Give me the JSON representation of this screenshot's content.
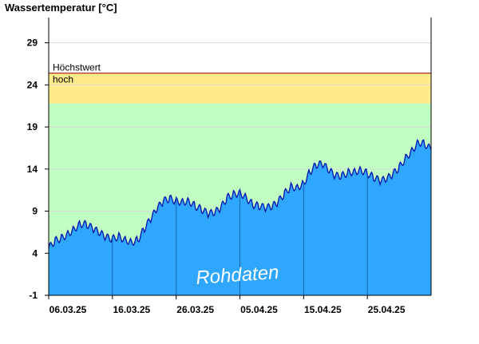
{
  "chart_data": {
    "type": "area",
    "title": "Wassertemperatur [°C]",
    "xlabel": "",
    "ylabel": "Wassertemperatur [°C]",
    "ylim": [
      -1,
      32
    ],
    "yticks": [
      -1,
      4,
      9,
      14,
      19,
      24,
      29
    ],
    "xlim": [
      "2025-03-06",
      "2025-05-05"
    ],
    "xticks": [
      {
        "date": "2025-03-06",
        "label": "06.03.25"
      },
      {
        "date": "2025-03-16",
        "label": "16.03.25"
      },
      {
        "date": "2025-03-26",
        "label": "26.03.25"
      },
      {
        "date": "2025-04-05",
        "label": "05.04.25"
      },
      {
        "date": "2025-04-15",
        "label": "15.04.25"
      },
      {
        "date": "2025-04-25",
        "label": "25.04.25"
      }
    ],
    "grid": true,
    "bands": [
      {
        "label": "",
        "from": -1,
        "to": 21.8,
        "color": "#c1fec1"
      },
      {
        "label": "hoch",
        "from": 21.8,
        "to": 25.4,
        "color": "#ffeb8c"
      }
    ],
    "threshold_lines": [
      {
        "label": "Höchstwert",
        "value": 25.4,
        "color": "#b03020"
      }
    ],
    "watermark": "Rohdaten",
    "series": [
      {
        "fill_color": "#2fa7ff",
        "line_color": "#0010b0",
        "x": [
          "2025-03-06",
          "2025-03-07",
          "2025-03-08",
          "2025-03-09",
          "2025-03-10",
          "2025-03-11",
          "2025-03-12",
          "2025-03-13",
          "2025-03-14",
          "2025-03-15",
          "2025-03-16",
          "2025-03-17",
          "2025-03-18",
          "2025-03-19",
          "2025-03-20",
          "2025-03-21",
          "2025-03-22",
          "2025-03-23",
          "2025-03-24",
          "2025-03-25",
          "2025-03-26",
          "2025-03-27",
          "2025-03-28",
          "2025-03-29",
          "2025-03-30",
          "2025-03-31",
          "2025-04-01",
          "2025-04-02",
          "2025-04-03",
          "2025-04-04",
          "2025-04-05",
          "2025-04-06",
          "2025-04-07",
          "2025-04-08",
          "2025-04-09",
          "2025-04-10",
          "2025-04-11",
          "2025-04-12",
          "2025-04-13",
          "2025-04-14",
          "2025-04-15",
          "2025-04-16",
          "2025-04-17",
          "2025-04-18",
          "2025-04-19",
          "2025-04-20",
          "2025-04-21",
          "2025-04-22",
          "2025-04-23",
          "2025-04-24",
          "2025-04-25",
          "2025-04-26",
          "2025-04-27",
          "2025-04-28",
          "2025-04-29",
          "2025-04-30",
          "2025-05-01",
          "2025-05-02",
          "2025-05-03",
          "2025-05-04",
          "2025-05-05"
        ],
        "y": [
          4.6,
          5.5,
          5.8,
          6.3,
          6.9,
          7.5,
          7.4,
          6.9,
          6.4,
          5.9,
          5.7,
          6.0,
          5.6,
          5.3,
          5.6,
          6.9,
          8.1,
          9.3,
          10.2,
          10.5,
          10.2,
          10.1,
          10.2,
          9.6,
          9.2,
          8.7,
          8.8,
          9.4,
          10.6,
          11.0,
          11.2,
          10.6,
          9.8,
          9.6,
          9.4,
          9.5,
          10.1,
          11.1,
          11.9,
          11.8,
          12.3,
          13.7,
          14.5,
          14.6,
          13.8,
          13.2,
          13.2,
          13.6,
          13.7,
          13.9,
          13.5,
          13.0,
          12.6,
          12.8,
          13.4,
          14.2,
          15.3,
          16.2,
          17.2,
          17.0,
          16.3
        ]
      }
    ]
  }
}
